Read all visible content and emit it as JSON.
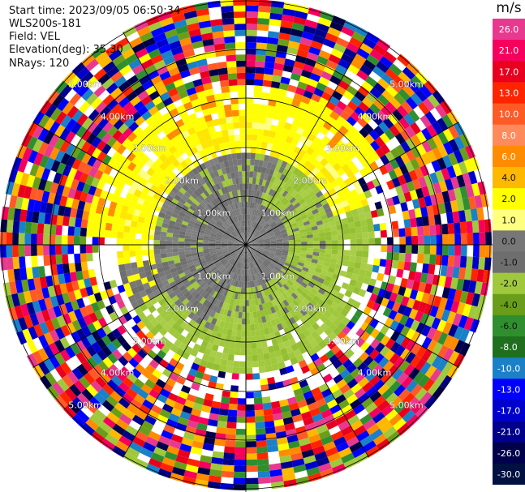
{
  "header": {
    "start_time_label": "Start time:",
    "start_time": "2023/09/05 06:50:34",
    "instrument": "WLS200s-181",
    "field_label": "Field:",
    "field": "VEL",
    "elevation_label": "Elevation(deg):",
    "elevation": "35.30",
    "nrays_label": "NRays:",
    "nrays": "120"
  },
  "colorbar": {
    "unit": "m/s",
    "ticks": [
      "26.0",
      "21.0",
      "17.0",
      "13.0",
      "10.0",
      "8.0",
      "6.0",
      "4.0",
      "2.0",
      "1.0",
      "0.0",
      "-1.0",
      "-2.0",
      "-4.0",
      "-6.0",
      "-8.0",
      "-10.0",
      "-13.0",
      "-17.0",
      "-21.0",
      "-26.0",
      "-30.0"
    ],
    "colors": [
      "#e8398f",
      "#f5005c",
      "#e8001e",
      "#ff2400",
      "#ff5a26",
      "#ff8a5c",
      "#ff8c00",
      "#ffb800",
      "#ffff00",
      "#ffff80",
      "#777777",
      "#6e6e6e",
      "#a0c83c",
      "#6a9e1a",
      "#2f8f2f",
      "#1f6f1f",
      "#1a80c8",
      "#0000ff",
      "#0000cc",
      "#00008c",
      "#00004b",
      "#001040"
    ]
  },
  "rings": {
    "labels": [
      "1.00km",
      "2.00km",
      "3.00km",
      "4.00km",
      "5.00km"
    ]
  }
}
